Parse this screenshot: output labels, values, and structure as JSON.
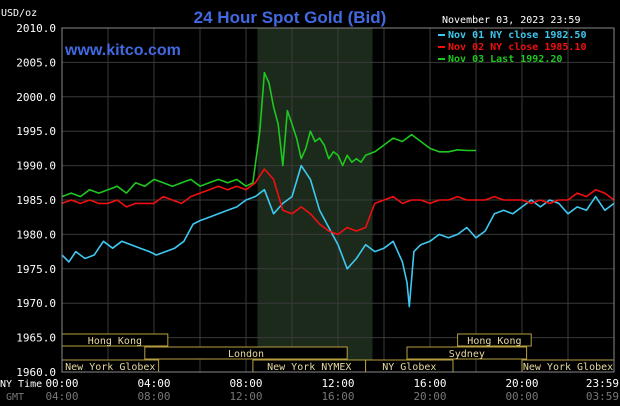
{
  "header": {
    "currency": "USD/oz",
    "title": "24 Hour Spot Gold (Bid)",
    "date": "November 03, 2023 23:59",
    "watermark": "www.kitco.com"
  },
  "colors": {
    "background": "#000000",
    "plot_background": "#000000",
    "grid": "#3a3a3a",
    "highlight": "#1c2a1c",
    "title": "#4169e1",
    "watermark": "#4169e1",
    "text": "#ffffff",
    "band_fill": "#000000",
    "band_border": "#b8a040",
    "band_text": "#e6d9a0",
    "axis_text": "#ffffff",
    "gmt_text": "#777777"
  },
  "sessions": [
    {
      "label": "Hong Kong",
      "row": 0,
      "start": 0,
      "end": 4.6
    },
    {
      "label": "Hong Kong",
      "row": 0,
      "start": 17.2,
      "end": 20.4
    },
    {
      "label": "London",
      "row": 1,
      "start": 3.6,
      "end": 12.4
    },
    {
      "label": "Sydney",
      "row": 1,
      "start": 15.0,
      "end": 20.2
    },
    {
      "label": "New York Globex",
      "row": 2,
      "start": 0,
      "end": 4.2
    },
    {
      "label": "New York NYMEX",
      "row": 2,
      "start": 8.3,
      "end": 13.2
    },
    {
      "label": "NY Globex",
      "row": 2,
      "start": 13.2,
      "end": 17.0
    },
    {
      "label": "New York Globex",
      "row": 2,
      "start": 20.0,
      "end": 24.0
    }
  ],
  "x_labels": {
    "ny_label": "NY Time",
    "gmt_label": "GMT",
    "ny": [
      "00:00",
      "04:00",
      "08:00",
      "12:00",
      "16:00",
      "20:00",
      "23:59"
    ],
    "gmt": [
      "04:00",
      "08:00",
      "12:00",
      "16:00",
      "20:00",
      "00:00",
      "03:59"
    ]
  },
  "chart_data": {
    "type": "line",
    "title": "24 Hour Spot Gold (Bid)",
    "ylabel": "USD/oz",
    "xlabel": "NY Time",
    "xlim": [
      0,
      24
    ],
    "ylim": [
      1960,
      2010
    ],
    "yticks": [
      "2010.0",
      "2005.0",
      "2000.0",
      "1995.0",
      "1990.0",
      "1985.0",
      "1980.0",
      "1975.0",
      "1970.0",
      "1965.0",
      "1960.0"
    ],
    "highlight_range": [
      8.5,
      13.5
    ],
    "grid": true,
    "legend_position": "top-right",
    "series": [
      {
        "name": "Nov 01 NY close 1982.50",
        "color": "#3ec8f0",
        "x": [
          0,
          0.3,
          0.6,
          1,
          1.4,
          1.8,
          2.2,
          2.6,
          3.0,
          3.4,
          3.8,
          4.1,
          4.5,
          4.9,
          5.3,
          5.7,
          6.0,
          6.4,
          6.8,
          7.2,
          7.6,
          8.0,
          8.4,
          8.8,
          9.2,
          9.6,
          10.0,
          10.4,
          10.8,
          11.2,
          11.6,
          12.0,
          12.4,
          12.8,
          13.2,
          13.6,
          14.0,
          14.4,
          14.8,
          15.0,
          15.1,
          15.3,
          15.6,
          16.0,
          16.4,
          16.8,
          17.2,
          17.6,
          18.0,
          18.4,
          18.8,
          19.2,
          19.6,
          20.0,
          20.4,
          20.8,
          21.2,
          21.6,
          22.0,
          22.4,
          22.8,
          23.2,
          23.6,
          24.0
        ],
        "y": [
          1977.0,
          1976.0,
          1977.5,
          1976.5,
          1977.0,
          1979.0,
          1978.0,
          1979.0,
          1978.5,
          1978.0,
          1977.5,
          1977.0,
          1977.5,
          1978.0,
          1979.0,
          1981.5,
          1982.0,
          1982.5,
          1983.0,
          1983.5,
          1984.0,
          1985.0,
          1985.5,
          1986.5,
          1983.0,
          1984.5,
          1985.5,
          1990.0,
          1988.0,
          1983.5,
          1981.0,
          1978.5,
          1975.0,
          1976.5,
          1978.5,
          1977.5,
          1978.0,
          1979.0,
          1976.0,
          1973.0,
          1969.5,
          1977.5,
          1978.5,
          1979.0,
          1980.0,
          1979.5,
          1980.0,
          1981.0,
          1979.5,
          1980.5,
          1983.0,
          1983.5,
          1983.0,
          1984.0,
          1985.0,
          1984.0,
          1985.0,
          1984.5,
          1983.0,
          1984.0,
          1983.5,
          1985.5,
          1983.5,
          1984.5
        ]
      },
      {
        "name": "Nov 02 NY close 1985.10",
        "color": "#f01010",
        "x": [
          0,
          0.4,
          0.8,
          1.2,
          1.6,
          2.0,
          2.4,
          2.8,
          3.2,
          3.6,
          4.0,
          4.4,
          4.8,
          5.2,
          5.6,
          6.0,
          6.4,
          6.8,
          7.2,
          7.6,
          8.0,
          8.4,
          8.8,
          9.2,
          9.6,
          10.0,
          10.4,
          10.8,
          11.2,
          11.6,
          12.0,
          12.4,
          12.8,
          13.2,
          13.6,
          14.0,
          14.4,
          14.8,
          15.2,
          15.6,
          16.0,
          16.4,
          16.8,
          17.2,
          17.6,
          18.0,
          18.4,
          18.8,
          19.2,
          19.6,
          20.0,
          20.4,
          20.8,
          21.2,
          21.6,
          22.0,
          22.4,
          22.8,
          23.2,
          23.6,
          24.0
        ],
        "y": [
          1984.5,
          1985.0,
          1984.5,
          1985.0,
          1984.5,
          1984.5,
          1985.0,
          1984.0,
          1984.5,
          1984.5,
          1984.5,
          1985.5,
          1985.0,
          1984.5,
          1985.5,
          1986.0,
          1986.5,
          1987.0,
          1986.5,
          1987.0,
          1986.5,
          1987.5,
          1989.5,
          1988.0,
          1983.5,
          1983.0,
          1984.0,
          1983.0,
          1981.5,
          1980.5,
          1980.0,
          1981.0,
          1980.5,
          1981.0,
          1984.5,
          1985.0,
          1985.5,
          1984.5,
          1985.0,
          1985.0,
          1984.5,
          1985.0,
          1985.0,
          1985.5,
          1985.0,
          1985.0,
          1985.0,
          1985.5,
          1985.0,
          1985.0,
          1985.0,
          1984.5,
          1985.0,
          1984.5,
          1985.0,
          1985.0,
          1986.0,
          1985.5,
          1986.5,
          1986.0,
          1985.0
        ]
      },
      {
        "name": "Nov 03 Last 1992.20",
        "color": "#1ec81e",
        "x": [
          0,
          0.4,
          0.8,
          1.2,
          1.6,
          2.0,
          2.4,
          2.8,
          3.2,
          3.6,
          4.0,
          4.4,
          4.8,
          5.2,
          5.6,
          6.0,
          6.4,
          6.8,
          7.2,
          7.6,
          8.0,
          8.3,
          8.6,
          8.8,
          9.0,
          9.2,
          9.4,
          9.6,
          9.8,
          10.0,
          10.2,
          10.4,
          10.6,
          10.8,
          11.0,
          11.2,
          11.4,
          11.6,
          11.8,
          12.0,
          12.2,
          12.4,
          12.6,
          12.8,
          13.0,
          13.2,
          13.6,
          14.0,
          14.4,
          14.8,
          15.2,
          15.6,
          16.0,
          16.4,
          16.8,
          17.2,
          17.6,
          18.0
        ],
        "y": [
          1985.5,
          1986.0,
          1985.5,
          1986.5,
          1986.0,
          1986.5,
          1987.0,
          1986.0,
          1987.5,
          1987.0,
          1988.0,
          1987.5,
          1987.0,
          1987.5,
          1988.0,
          1987.0,
          1987.5,
          1988.0,
          1987.5,
          1988.0,
          1987.0,
          1987.5,
          1995.0,
          2003.5,
          2002.0,
          1998.5,
          1996.0,
          1990.0,
          1998.0,
          1996.0,
          1994.0,
          1991.0,
          1992.5,
          1995.0,
          1993.5,
          1994.0,
          1993.0,
          1991.0,
          1992.0,
          1991.5,
          1990.0,
          1991.5,
          1990.5,
          1991.0,
          1990.5,
          1991.5,
          1992.0,
          1993.0,
          1994.0,
          1993.5,
          1994.5,
          1993.5,
          1992.5,
          1992.0,
          1992.0,
          1992.3,
          1992.2,
          1992.2
        ]
      }
    ]
  }
}
